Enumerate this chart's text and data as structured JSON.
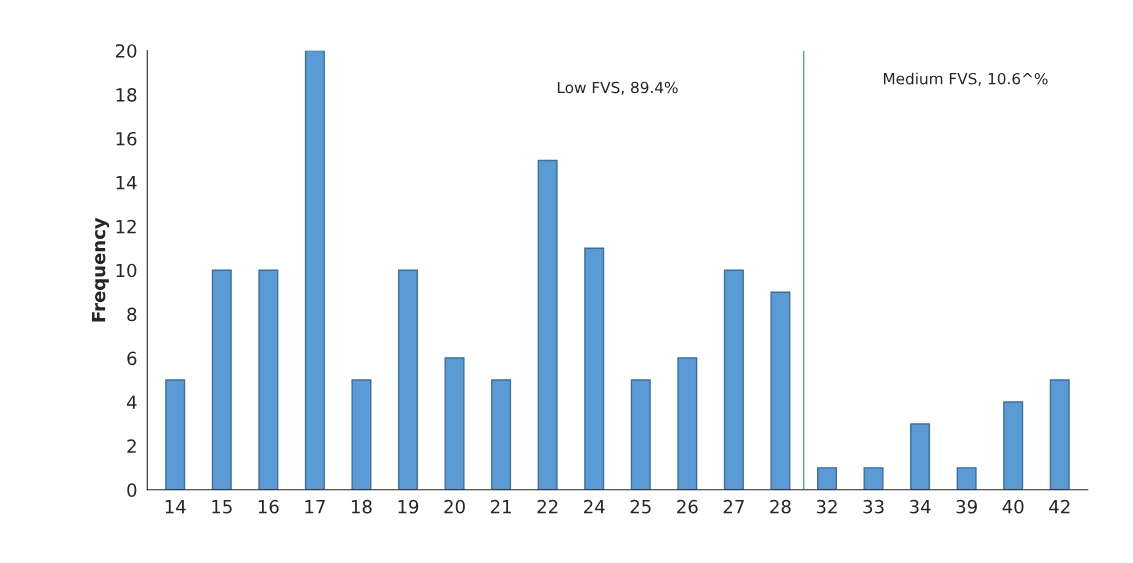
{
  "chart_data": {
    "type": "bar",
    "ylabel": "Frequency",
    "categories": [
      "14",
      "15",
      "16",
      "17",
      "18",
      "19",
      "20",
      "21",
      "22",
      "24",
      "25",
      "26",
      "27",
      "28",
      "32",
      "33",
      "34",
      "39",
      "40",
      "42"
    ],
    "values": [
      5,
      10,
      10,
      20,
      5,
      10,
      6,
      5,
      15,
      11,
      5,
      6,
      10,
      9,
      1,
      1,
      3,
      1,
      4,
      5
    ],
    "color": "#5b9bd5",
    "ylim": [
      0,
      20
    ],
    "yticks": [
      0,
      2,
      4,
      6,
      8,
      10,
      12,
      14,
      16,
      18,
      20
    ],
    "grid": false,
    "ref_lines": [
      {
        "axis": "x",
        "value": "28",
        "color": "#5b9bd5"
      }
    ],
    "annotations": [
      "Low FVS, 89.4%",
      "Medium FVS, 10.6^%"
    ]
  }
}
